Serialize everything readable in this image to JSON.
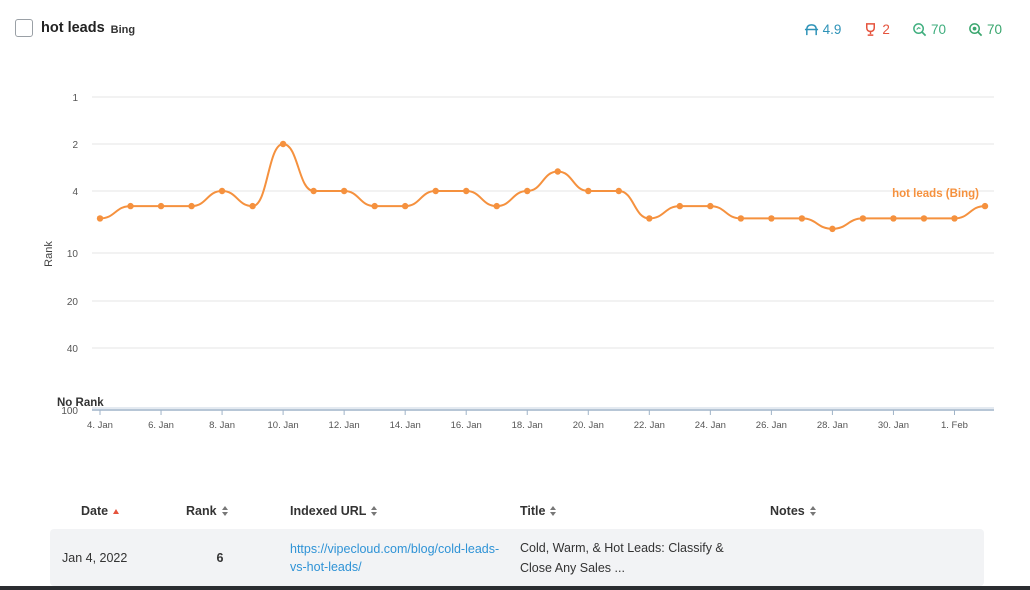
{
  "keyword": {
    "title": "hot leads",
    "engine": "Bing"
  },
  "metrics": [
    {
      "icon": "visibility-icon",
      "value": "4.9",
      "color": "#2f93b8"
    },
    {
      "icon": "trophy-icon",
      "value": "2",
      "color": "#e5533d"
    },
    {
      "icon": "search-volume-icon",
      "value": "70",
      "color": "#3fae7e"
    },
    {
      "icon": "search-target-icon",
      "value": "70",
      "color": "#3aa66e"
    }
  ],
  "chart_data": {
    "type": "line",
    "ylabel": "Rank",
    "y_tick_labels": [
      "1",
      "2",
      "4",
      "10",
      "20",
      "40",
      "100"
    ],
    "no_rank_label": "No Rank",
    "x_tick_labels": [
      "4. Jan",
      "6. Jan",
      "8. Jan",
      "10. Jan",
      "12. Jan",
      "14. Jan",
      "16. Jan",
      "18. Jan",
      "20. Jan",
      "22. Jan",
      "24. Jan",
      "26. Jan",
      "28. Jan",
      "30. Jan",
      "1. Feb"
    ],
    "series": [
      {
        "name": "hot leads (Bing)",
        "color": "#f5913e",
        "x": [
          "Jan 4",
          "Jan 5",
          "Jan 6",
          "Jan 7",
          "Jan 8",
          "Jan 9",
          "Jan 10",
          "Jan 11",
          "Jan 12",
          "Jan 13",
          "Jan 14",
          "Jan 15",
          "Jan 16",
          "Jan 17",
          "Jan 18",
          "Jan 19",
          "Jan 20",
          "Jan 21",
          "Jan 22",
          "Jan 23",
          "Jan 24",
          "Jan 25",
          "Jan 26",
          "Jan 27",
          "Jan 28",
          "Jan 29",
          "Jan 30",
          "Jan 31",
          "Feb 1",
          "Feb 2"
        ],
        "values": [
          6,
          5,
          5,
          5,
          4,
          5,
          2,
          4,
          4,
          5,
          5,
          4,
          4,
          5,
          4,
          3,
          4,
          4,
          6,
          5,
          5,
          6,
          6,
          6,
          7,
          6,
          6,
          6,
          6,
          5
        ]
      }
    ],
    "grid": true
  },
  "table": {
    "headers": {
      "date": "Date",
      "rank": "Rank",
      "url": "Indexed URL",
      "title": "Title",
      "notes": "Notes"
    },
    "rows": [
      {
        "date": "Jan 4, 2022",
        "rank": "6",
        "url_line1": "https://vipecloud.com/blog/cold-leads-",
        "url_line2": "vs-hot-leads/",
        "title_line1": "Cold, Warm, & Hot Leads: Classify &",
        "title_line2": "Close Any Sales ...",
        "notes": ""
      }
    ]
  }
}
